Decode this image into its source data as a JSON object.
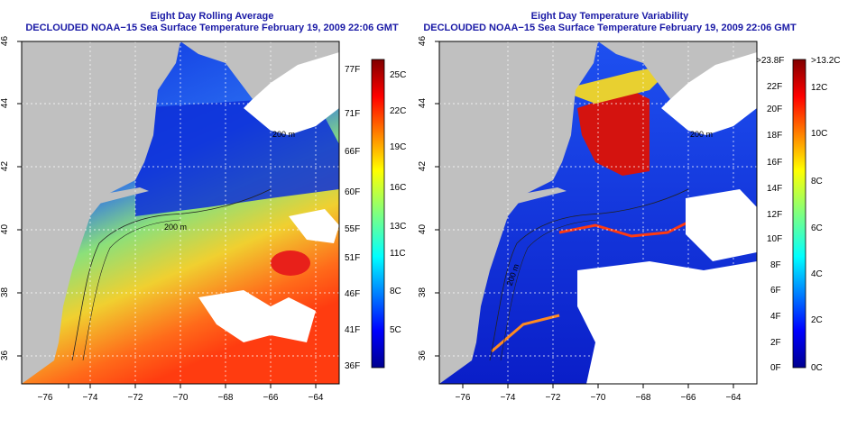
{
  "left_map": {
    "title_line1": "Eight Day Rolling Average",
    "title_line2": "DECLOUDED NOAA−15 Sea Surface Temperature February 19, 2009 22:06 GMT",
    "lat_ticks": [
      "46",
      "44",
      "42",
      "40",
      "38",
      "36"
    ],
    "lon_ticks": [
      "−76",
      "−74",
      "−72",
      "−70",
      "−68",
      "−66",
      "−64"
    ],
    "contour_label_a": "200 m",
    "contour_label_b": "200 m",
    "colorbar_f": [
      "77F",
      "71F",
      "66F",
      "60F",
      "55F",
      "51F",
      "46F",
      "41F",
      "36F"
    ],
    "colorbar_c": [
      "25C",
      "22C",
      "19C",
      "16C",
      "13C",
      "11C",
      "8C",
      "5C"
    ]
  },
  "right_map": {
    "title_line1": "Eight Day Temperature Variability",
    "title_line2": "DECLOUDED NOAA−15 Sea Surface Temperature February 19, 2009 22:06 GMT",
    "lat_ticks": [
      "46",
      "44",
      "42",
      "40",
      "38",
      "36"
    ],
    "lon_ticks": [
      "−76",
      "−74",
      "−72",
      "−70",
      "−68",
      "−66",
      "−64"
    ],
    "contour_label_a": "200 m",
    "contour_label_b": "200 m",
    "colorbar_f": [
      ">23.8F",
      "22F",
      "20F",
      "18F",
      "16F",
      "14F",
      "12F",
      "10F",
      "8F",
      "6F",
      "4F",
      "2F",
      "0F"
    ],
    "colorbar_c": [
      ">13.2C",
      "12C",
      "10C",
      "8C",
      "6C",
      "4C",
      "2C",
      "0C"
    ]
  },
  "colors": {
    "land": "#c0c0c0",
    "title": "#1a1aa6",
    "jet_low": "#00008f",
    "jet_high": "#800000"
  }
}
